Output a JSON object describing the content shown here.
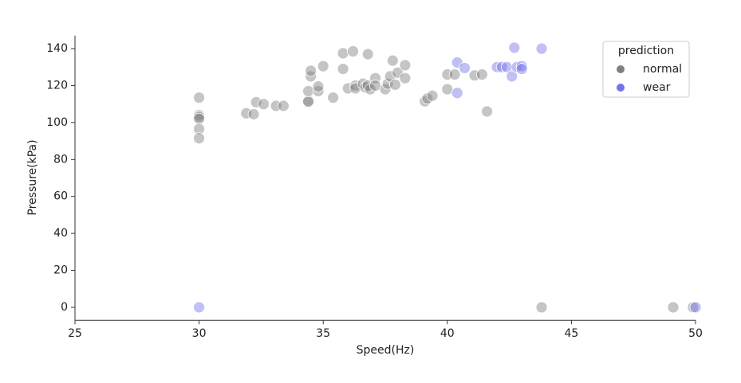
{
  "chart_data": {
    "type": "scatter",
    "x_label": "Speed(Hz)",
    "y_label": "Pressure(kPa)",
    "xlim": [
      25,
      50
    ],
    "ylim": [
      -7,
      147
    ],
    "xticks": [
      25,
      30,
      35,
      40,
      45,
      50
    ],
    "yticks": [
      0,
      20,
      40,
      60,
      80,
      100,
      120,
      140
    ],
    "grid": false,
    "legend_title": "prediction",
    "legend_position": "upper right",
    "series": [
      {
        "name": "normal",
        "color": "#7f7f7f",
        "x": [
          30,
          30,
          30,
          30,
          30,
          30,
          31.9,
          32.2,
          32.3,
          32.6,
          33.1,
          33.4,
          34.4,
          34.4,
          34.4,
          34.5,
          34.5,
          34.8,
          34.8,
          35.0,
          35.4,
          35.8,
          35.8,
          36.0,
          36.2,
          36.3,
          36.3,
          36.6,
          36.7,
          36.8,
          36.8,
          36.9,
          37.1,
          37.1,
          37.5,
          37.6,
          37.7,
          37.8,
          37.9,
          38.0,
          38.3,
          38.3,
          39.1,
          39.2,
          39.4,
          40.0,
          40.0,
          40.3,
          41.1,
          41.4,
          41.6,
          43.8,
          49.1,
          49.9
        ],
        "values": [
          113.5,
          104,
          103,
          102,
          96.5,
          91.5,
          105,
          104.5,
          111,
          110,
          109,
          109,
          111,
          111.5,
          117,
          125,
          128,
          117,
          119.5,
          130.5,
          113.5,
          137.5,
          129,
          118.5,
          138.5,
          120,
          118.5,
          121,
          119,
          137,
          120,
          118,
          124,
          120,
          118,
          121,
          125,
          133.5,
          120.5,
          127,
          124,
          131,
          111.5,
          113,
          114.5,
          126,
          118,
          126,
          125.5,
          126,
          106,
          0,
          0,
          0
        ]
      },
      {
        "name": "wear",
        "color": "#7474e8",
        "x": [
          30,
          40.4,
          40.4,
          40.7,
          42.0,
          42.2,
          42.4,
          42.6,
          42.7,
          42.8,
          43.0,
          43.0,
          43.8,
          50
        ],
        "values": [
          0,
          132.5,
          116,
          129.5,
          130,
          130,
          130,
          125,
          140.5,
          130,
          130.5,
          129,
          140,
          0
        ]
      }
    ]
  }
}
